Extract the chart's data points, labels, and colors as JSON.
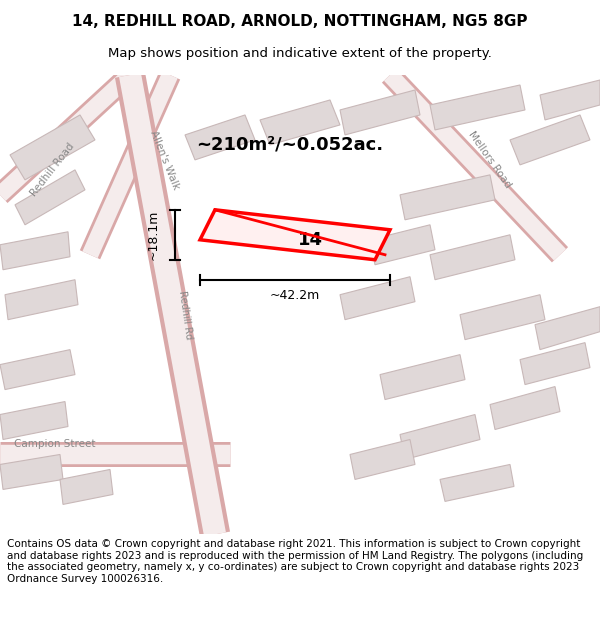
{
  "title_line1": "14, REDHILL ROAD, ARNOLD, NOTTINGHAM, NG5 8GP",
  "title_line2": "Map shows position and indicative extent of the property.",
  "area_text": "~210m²/~0.052ac.",
  "label_number": "14",
  "width_label": "~42.2m",
  "height_label": "~18.1m",
  "footer_text": "Contains OS data © Crown copyright and database right 2021. This information is subject to Crown copyright and database rights 2023 and is reproduced with the permission of HM Land Registry. The polygons (including the associated geometry, namely x, y co-ordinates) are subject to Crown copyright and database rights 2023 Ordnance Survey 100026316.",
  "map_bg": "#f9f5f5",
  "road_color": "#e8c8c8",
  "building_color": "#e0d8d8",
  "building_edge": "#c8b8b8",
  "property_color": "#ff0000",
  "title_fontsize": 11,
  "subtitle_fontsize": 9.5,
  "footer_fontsize": 7.5,
  "road_label_color": "#888888",
  "road_outer": "#d9a8a8",
  "road_inner": "#f5ecec"
}
